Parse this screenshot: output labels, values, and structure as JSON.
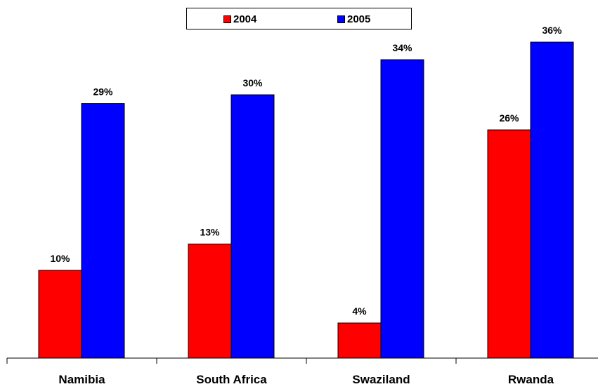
{
  "chart_data": {
    "type": "bar",
    "categories": [
      "Namibia",
      "South Africa",
      "Swaziland",
      "Rwanda"
    ],
    "series": [
      {
        "name": "2004",
        "values": [
          10,
          13,
          4,
          26
        ],
        "labels": [
          "10%",
          "13%",
          "4%",
          "26%"
        ],
        "color": "#ff0000"
      },
      {
        "name": "2005",
        "values": [
          29,
          30,
          34,
          36
        ],
        "labels": [
          "29%",
          "30%",
          "34%",
          "36%"
        ],
        "color": "#0000ff"
      }
    ],
    "ylim": [
      0,
      36
    ],
    "grid": false,
    "legend": "top-center",
    "title": "",
    "xlabel": "",
    "ylabel": ""
  }
}
